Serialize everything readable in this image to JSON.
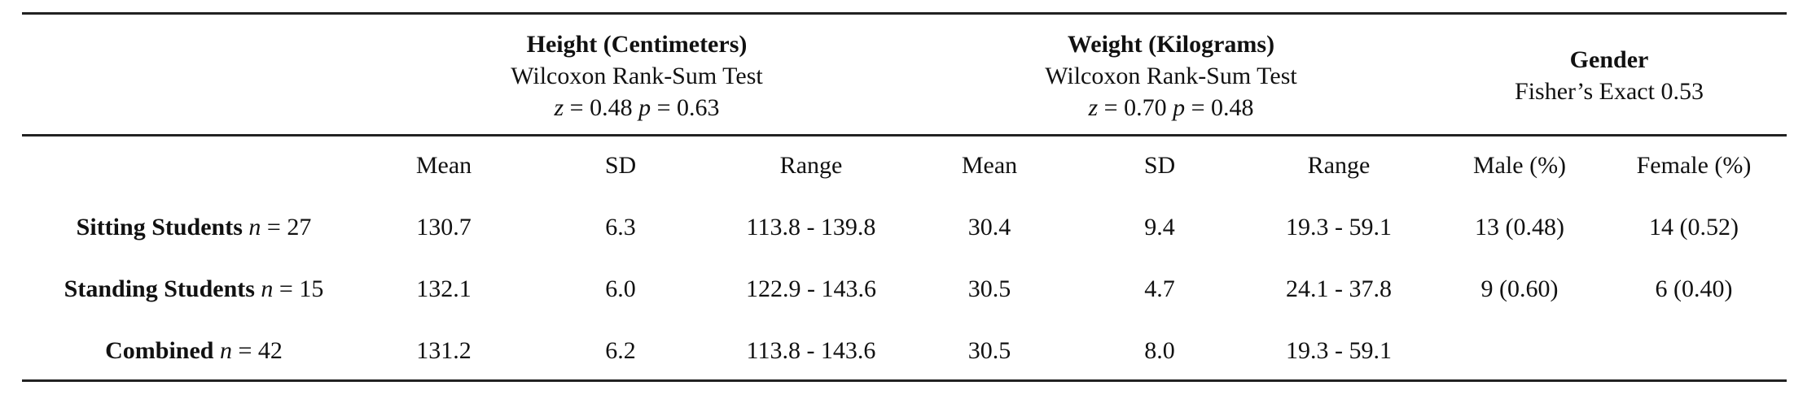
{
  "table": {
    "groups": [
      {
        "title": "Height (Centimeters)",
        "test": "Wilcoxon Rank-Sum Test",
        "stats": {
          "z_label": "z",
          "z_text": " = 0.48 ",
          "p_label": "p",
          "p_text": " = 0.63"
        }
      },
      {
        "title": "Weight (Kilograms)",
        "test": "Wilcoxon Rank-Sum Test",
        "stats": {
          "z_label": "z",
          "z_text": " = 0.70 ",
          "p_label": "p",
          "p_text": " = 0.48"
        }
      },
      {
        "title": "Gender",
        "test": "Fisher’s Exact 0.53"
      }
    ],
    "columns": [
      "Mean",
      "SD",
      "Range",
      "Mean",
      "SD",
      "Range",
      "Male (%)",
      "Female (%)"
    ],
    "rows": [
      {
        "label": "Sitting Students",
        "n_label": "n",
        "n_value": " = 27",
        "cells": [
          "130.7",
          "6.3",
          "113.8 - 139.8",
          "30.4",
          "9.4",
          "19.3 - 59.1",
          "13 (0.48)",
          "14 (0.52)"
        ]
      },
      {
        "label": "Standing Students",
        "n_label": "n",
        "n_value": " = 15",
        "cells": [
          "132.1",
          "6.0",
          "122.9 - 143.6",
          "30.5",
          "4.7",
          "24.1 - 37.8",
          "9 (0.60)",
          "6 (0.40)"
        ]
      },
      {
        "label": "Combined",
        "n_label": "n",
        "n_value": " = 42",
        "cells": [
          "131.2",
          "6.2",
          "113.8 - 143.6",
          "30.5",
          "8.0",
          "19.3 - 59.1",
          "",
          ""
        ]
      }
    ]
  }
}
